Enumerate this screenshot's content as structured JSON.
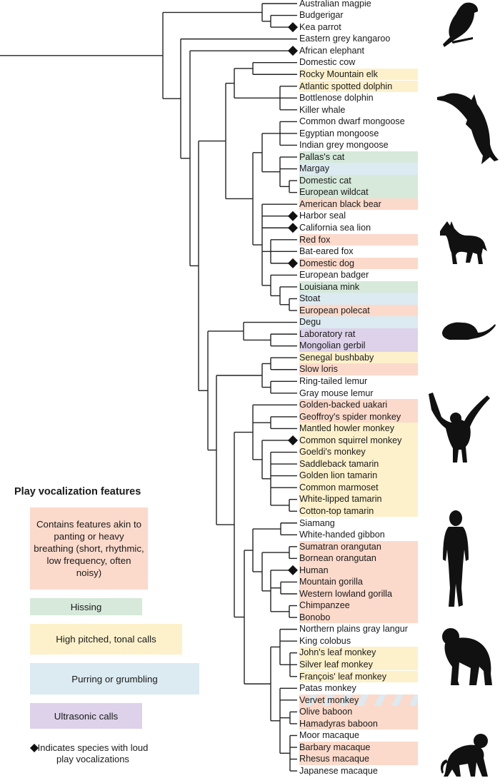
{
  "colors": {
    "panting": "#fbdacb",
    "hissing": "#d6e9da",
    "high": "#fdf1cb",
    "purring": "#dceaf1",
    "ultrasonic": "#ddd2ea",
    "line": "#222222"
  },
  "legend": {
    "title": "Play vocalization features",
    "items": [
      {
        "key": "panting",
        "label": "Contains features akin to panting or heavy breathing (short, rhythmic, low frequency, often noisy)"
      },
      {
        "key": "hissing",
        "label": "Hissing"
      },
      {
        "key": "high",
        "label": "High pitched, tonal calls"
      },
      {
        "key": "purring",
        "label": "Purring or grumbling"
      },
      {
        "key": "ultrasonic",
        "label": "Ultrasonic calls"
      }
    ],
    "diamond_note": "Indicates species with loud play vocalizations"
  },
  "species": [
    {
      "name": "Australian magpie",
      "cat": null,
      "loud": false
    },
    {
      "name": "Budgerigar",
      "cat": null,
      "loud": false
    },
    {
      "name": "Kea parrot",
      "cat": null,
      "loud": true
    },
    {
      "name": "Eastern grey kangaroo",
      "cat": null,
      "loud": false
    },
    {
      "name": "African elephant",
      "cat": null,
      "loud": true
    },
    {
      "name": "Domestic cow",
      "cat": null,
      "loud": false
    },
    {
      "name": "Rocky Mountain elk",
      "cat": "high",
      "loud": false
    },
    {
      "name": "Atlantic spotted dolphin",
      "cat": "high",
      "loud": false
    },
    {
      "name": "Bottlenose dolphin",
      "cat": null,
      "loud": false
    },
    {
      "name": "Killer whale",
      "cat": null,
      "loud": false
    },
    {
      "name": "Common dwarf mongoose",
      "cat": null,
      "loud": false
    },
    {
      "name": "Egyptian mongoose",
      "cat": null,
      "loud": false
    },
    {
      "name": "Indian grey mongoose",
      "cat": null,
      "loud": false
    },
    {
      "name": "Pallas's cat",
      "cat": "hissing",
      "loud": false
    },
    {
      "name": "Margay",
      "cat": "purring",
      "loud": false
    },
    {
      "name": "Domestic cat",
      "cat": "hissing",
      "loud": false
    },
    {
      "name": "European wildcat",
      "cat": "hissing",
      "loud": false
    },
    {
      "name": "American black bear",
      "cat": "panting",
      "loud": false
    },
    {
      "name": "Harbor seal",
      "cat": null,
      "loud": true
    },
    {
      "name": "California sea lion",
      "cat": null,
      "loud": true
    },
    {
      "name": "Red fox",
      "cat": "panting",
      "loud": false
    },
    {
      "name": "Bat-eared fox",
      "cat": null,
      "loud": false
    },
    {
      "name": "Domestic dog",
      "cat": "panting",
      "loud": true
    },
    {
      "name": "European badger",
      "cat": null,
      "loud": false
    },
    {
      "name": "Louisiana mink",
      "cat": "hissing",
      "loud": false
    },
    {
      "name": "Stoat",
      "cat": "purring",
      "loud": false
    },
    {
      "name": "European polecat",
      "cat": "panting",
      "loud": false
    },
    {
      "name": "Degu",
      "cat": "purring",
      "loud": false
    },
    {
      "name": "Laboratory rat",
      "cat": "ultrasonic",
      "loud": false
    },
    {
      "name": "Mongolian gerbil",
      "cat": "ultrasonic",
      "loud": false
    },
    {
      "name": "Senegal bushbaby",
      "cat": "high",
      "loud": false
    },
    {
      "name": "Slow loris",
      "cat": "panting",
      "loud": false
    },
    {
      "name": "Ring-tailed lemur",
      "cat": null,
      "loud": false
    },
    {
      "name": "Gray mouse lemur",
      "cat": null,
      "loud": false
    },
    {
      "name": "Golden-backed uakari",
      "cat": "panting",
      "loud": false
    },
    {
      "name": "Geoffroy's spider monkey",
      "cat": "panting",
      "loud": false
    },
    {
      "name": "Mantled howler monkey",
      "cat": "high",
      "loud": false
    },
    {
      "name": "Common squirrel monkey",
      "cat": "high",
      "loud": true
    },
    {
      "name": "Goeldi's monkey",
      "cat": "high",
      "loud": false
    },
    {
      "name": "Saddleback tamarin",
      "cat": "high",
      "loud": false
    },
    {
      "name": "Golden lion tamarin",
      "cat": "high",
      "loud": false
    },
    {
      "name": "Common marmoset",
      "cat": "high",
      "loud": false
    },
    {
      "name": "White-lipped tamarin",
      "cat": "high",
      "loud": false
    },
    {
      "name": "Cotton-top tamarin",
      "cat": "high",
      "loud": false
    },
    {
      "name": "Siamang",
      "cat": null,
      "loud": false
    },
    {
      "name": "White-handed gibbon",
      "cat": null,
      "loud": false
    },
    {
      "name": "Sumatran orangutan",
      "cat": "panting",
      "loud": false
    },
    {
      "name": "Bornean orangutan",
      "cat": "panting",
      "loud": false
    },
    {
      "name": "Human",
      "cat": "panting",
      "loud": true
    },
    {
      "name": "Mountain gorilla",
      "cat": "panting",
      "loud": false
    },
    {
      "name": "Western lowland gorilla",
      "cat": "panting",
      "loud": false
    },
    {
      "name": "Chimpanzee",
      "cat": "panting",
      "loud": false
    },
    {
      "name": "Bonobo",
      "cat": "panting",
      "loud": false
    },
    {
      "name": "Northern plains gray langur",
      "cat": null,
      "loud": false
    },
    {
      "name": "King colobus",
      "cat": null,
      "loud": false
    },
    {
      "name": "John's leaf monkey",
      "cat": "high",
      "loud": false
    },
    {
      "name": "Silver leaf monkey",
      "cat": "high",
      "loud": false
    },
    {
      "name": "François' leaf monkey",
      "cat": "high",
      "loud": false
    },
    {
      "name": "Patas monkey",
      "cat": null,
      "loud": false
    },
    {
      "name": "Vervet monkey",
      "cat": "panting+purring",
      "loud": false
    },
    {
      "name": "Olive baboon",
      "cat": "panting",
      "loud": false
    },
    {
      "name": "Hamadyras baboon",
      "cat": "panting",
      "loud": false
    },
    {
      "name": "Moor macaque",
      "cat": null,
      "loud": false
    },
    {
      "name": "Barbary macaque",
      "cat": "panting",
      "loud": false
    },
    {
      "name": "Rhesus macaque",
      "cat": "panting",
      "loud": false
    },
    {
      "name": "Japanese macaque",
      "cat": null,
      "loud": false
    }
  ],
  "silhouettes": [
    "parrot",
    "dolphin",
    "dog",
    "rat",
    "gibbon",
    "human",
    "chimpanzee",
    "monkey"
  ]
}
